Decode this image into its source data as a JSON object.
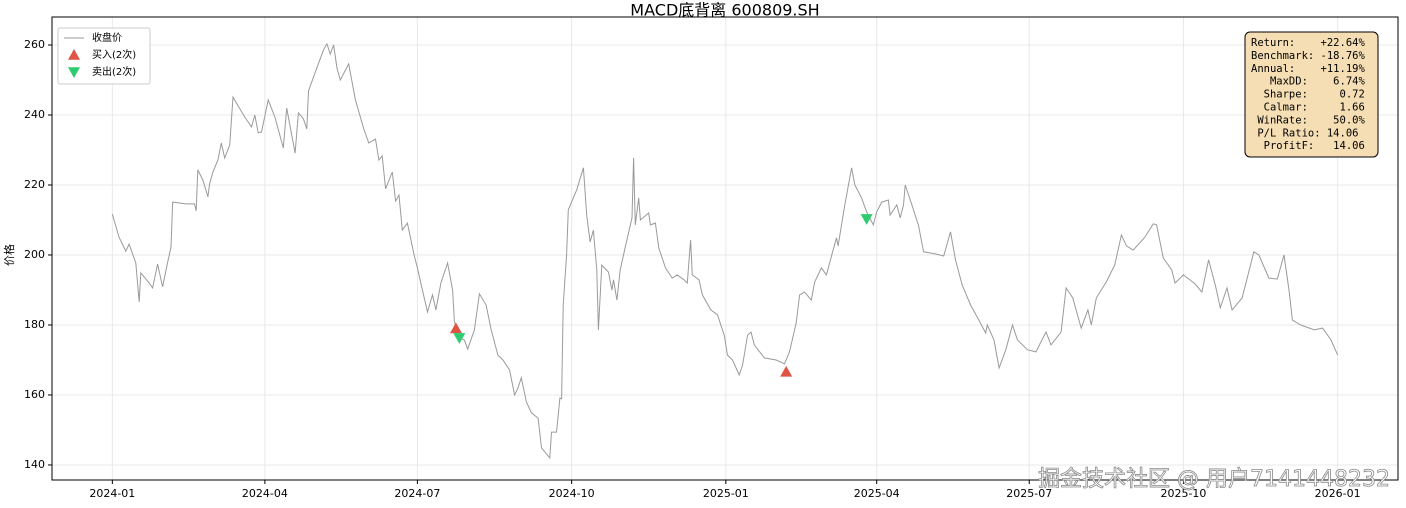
{
  "chart_data": {
    "type": "line",
    "title": "MACD底背离  600809.SH",
    "ylabel": "价格",
    "x": [
      0,
      4,
      8,
      10,
      14,
      16,
      17,
      22,
      24,
      27,
      30,
      33,
      35,
      36,
      44,
      49,
      50,
      51,
      54,
      57,
      58,
      60,
      63,
      65,
      67,
      70,
      72,
      75,
      79,
      83,
      85,
      87,
      89,
      93,
      97,
      102,
      104,
      109,
      111,
      114,
      116,
      117,
      122,
      126,
      128,
      130,
      132,
      134,
      136,
      141,
      145,
      150,
      153,
      157,
      159,
      161,
      163,
      167,
      169,
      171,
      173,
      176,
      180,
      182,
      185,
      188,
      191,
      193,
      196,
      200,
      203,
      204,
      206,
      210,
      212,
      216,
      219,
      223,
      226,
      230,
      233,
      237,
      240,
      242,
      244,
      247,
      250,
      254,
      256,
      261,
      262,
      265,
      267,
      268,
      269,
      271,
      272,
      277,
      281,
      283,
      285,
      287,
      289,
      290,
      292,
      296,
      298,
      299,
      301,
      303,
      306,
      310,
      311,
      312,
      314,
      315,
      320,
      321,
      324,
      326,
      330,
      334,
      337,
      341,
      343,
      345,
      346,
      350,
      352,
      357,
      361,
      365,
      367,
      370,
      374,
      376,
      379,
      381,
      383,
      389,
      396,
      401,
      404,
      408,
      410,
      413,
      417,
      419,
      423,
      426,
      430,
      432,
      433,
      437,
      441,
      443,
      447,
      450,
      454,
      456,
      459,
      463,
      464,
      468,
      470,
      472,
      473,
      477,
      481,
      484,
      491,
      496,
      500,
      503,
      507,
      512,
      517,
      521,
      522,
      526,
      529,
      533,
      537,
      540,
      546,
      551,
      557,
      560,
      566,
      569,
      573,
      578,
      582,
      584,
      587,
      593,
      598,
      602,
      605,
      609,
      616,
      621,
      623,
      627,
      632,
      634,
      639,
      646,
      650,
      654,
      658,
      661,
      665,
      668,
      674,
      679,
      681,
      684,
      690,
      695,
      699,
      702,
      704,
      709,
      717,
      722,
      727,
      731
    ],
    "series": [
      {
        "name": "收盘价",
        "color": "#9a9a9a",
        "values": [
          211.7,
          205.1,
          201.1,
          203.1,
          197.7,
          186.6,
          194.9,
          192.0,
          190.6,
          197.4,
          190.9,
          198.0,
          202.3,
          215.1,
          214.6,
          214.6,
          212.6,
          224.3,
          221.4,
          216.6,
          220.3,
          223.7,
          227.1,
          232.0,
          227.7,
          231.4,
          245.1,
          242.6,
          239.4,
          236.6,
          240.0,
          234.9,
          235.1,
          244.3,
          239.4,
          230.6,
          242.0,
          229.1,
          240.6,
          238.9,
          236.0,
          246.9,
          253.4,
          258.6,
          260.3,
          257.4,
          260.0,
          253.4,
          250.0,
          254.6,
          244.3,
          236.0,
          232.0,
          233.1,
          227.1,
          228.3,
          218.9,
          223.7,
          215.4,
          217.1,
          207.1,
          209.1,
          200.0,
          196.3,
          190.0,
          183.7,
          188.6,
          184.3,
          192.0,
          197.7,
          190.0,
          181.4,
          176.6,
          175.7,
          173.1,
          178.6,
          188.9,
          185.7,
          178.6,
          171.4,
          170.0,
          167.1,
          160.0,
          162.0,
          164.9,
          158.0,
          154.9,
          153.4,
          144.9,
          142.0,
          149.4,
          149.4,
          159.1,
          158.9,
          185.7,
          200.0,
          212.9,
          218.6,
          224.9,
          211.4,
          203.7,
          207.1,
          195.7,
          178.6,
          197.1,
          195.1,
          190.0,
          192.9,
          187.1,
          195.7,
          202.3,
          210.6,
          227.7,
          208.6,
          216.3,
          210.0,
          212.0,
          208.6,
          209.1,
          202.0,
          196.3,
          193.4,
          194.3,
          192.9,
          192.0,
          204.3,
          194.3,
          192.9,
          188.6,
          184.3,
          182.9,
          177.1,
          171.4,
          170.0,
          165.7,
          168.6,
          177.1,
          178.0,
          174.3,
          170.6,
          170.0,
          168.9,
          172.3,
          180.6,
          188.6,
          189.4,
          187.1,
          192.3,
          196.3,
          194.3,
          201.4,
          204.9,
          202.6,
          214.3,
          224.9,
          220.0,
          216.3,
          212.3,
          208.6,
          212.3,
          215.1,
          215.7,
          211.4,
          214.3,
          210.6,
          214.3,
          220.0,
          214.3,
          208.3,
          200.9,
          200.3,
          199.7,
          206.6,
          198.6,
          191.4,
          185.7,
          181.4,
          177.7,
          180.0,
          175.7,
          167.7,
          172.9,
          180.0,
          175.7,
          172.9,
          172.3,
          178.0,
          174.3,
          178.0,
          190.6,
          187.7,
          179.1,
          184.3,
          180.0,
          187.7,
          192.3,
          197.1,
          205.7,
          202.6,
          201.4,
          205.1,
          208.9,
          208.6,
          199.1,
          195.7,
          192.0,
          194.3,
          191.7,
          189.4,
          198.6,
          191.4,
          184.9,
          190.6,
          184.3,
          187.7,
          197.1,
          200.9,
          200.0,
          193.4,
          193.1,
          200.0,
          190.0,
          181.4,
          180.0,
          178.6,
          179.1,
          175.7,
          171.4
        ]
      },
      {
        "name": "买入(2次)",
        "type": "scatter",
        "marker": "triangle-up",
        "color": "#e05444",
        "x": [
          205,
          402
        ],
        "values": [
          179.0,
          166.6
        ]
      },
      {
        "name": "卖出(2次)",
        "type": "scatter",
        "marker": "triangle-down",
        "color": "#2ecc71",
        "x": [
          207,
          450
        ],
        "values": [
          176.3,
          210.3
        ]
      }
    ],
    "xlim": [
      -36,
      767
    ],
    "ylim": [
      135.7,
      268.0
    ],
    "xticks": [
      {
        "value": 0,
        "label": "2024-01"
      },
      {
        "value": 91,
        "label": "2024-04"
      },
      {
        "value": 182,
        "label": "2024-07"
      },
      {
        "value": 274,
        "label": "2024-10"
      },
      {
        "value": 366,
        "label": "2025-01"
      },
      {
        "value": 456,
        "label": "2025-04"
      },
      {
        "value": 547,
        "label": "2025-07"
      },
      {
        "value": 639,
        "label": "2025-10"
      },
      {
        "value": 731,
        "label": "2026-01"
      }
    ],
    "yticks": [
      140,
      160,
      180,
      200,
      220,
      240,
      260
    ],
    "grid": true,
    "legend": "upper left",
    "stats": [
      "Return:    +22.64%",
      "Benchmark: -18.76%",
      "Annual:    +11.19%",
      "   MaxDD:    6.74%",
      "  Sharpe:     0.72",
      "  Calmar:     1.66",
      " WinRate:    50.0%",
      " P/L Ratio: 14.06",
      "  ProfitF:   14.06"
    ]
  },
  "watermark": "掘金技术社区 @ 用户7141448232"
}
